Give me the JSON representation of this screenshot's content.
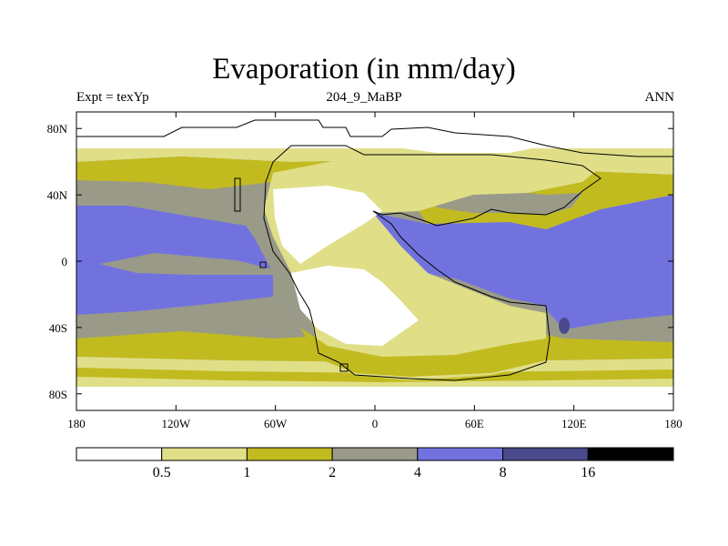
{
  "chart_data": {
    "type": "heatmap",
    "title": "Evaporation (in mm/day)",
    "subtitle_left": "Expt = texYp",
    "subtitle_center": "204_9_MaBP",
    "subtitle_right": "ANN",
    "x_ticks": [
      "180",
      "120W",
      "60W",
      "0",
      "60E",
      "120E",
      "180"
    ],
    "y_ticks": [
      "80N",
      "40N",
      "0",
      "40S",
      "80S"
    ],
    "xlim": [
      -180,
      180
    ],
    "ylim": [
      -90,
      90
    ],
    "levels": [
      "0.5",
      "1",
      "2",
      "4",
      "8",
      "16"
    ],
    "colors": [
      "#ffffff",
      "#e0df88",
      "#c2bb20",
      "#9a9a88",
      "#7272df",
      "#4a4a8c",
      "#000000"
    ]
  }
}
